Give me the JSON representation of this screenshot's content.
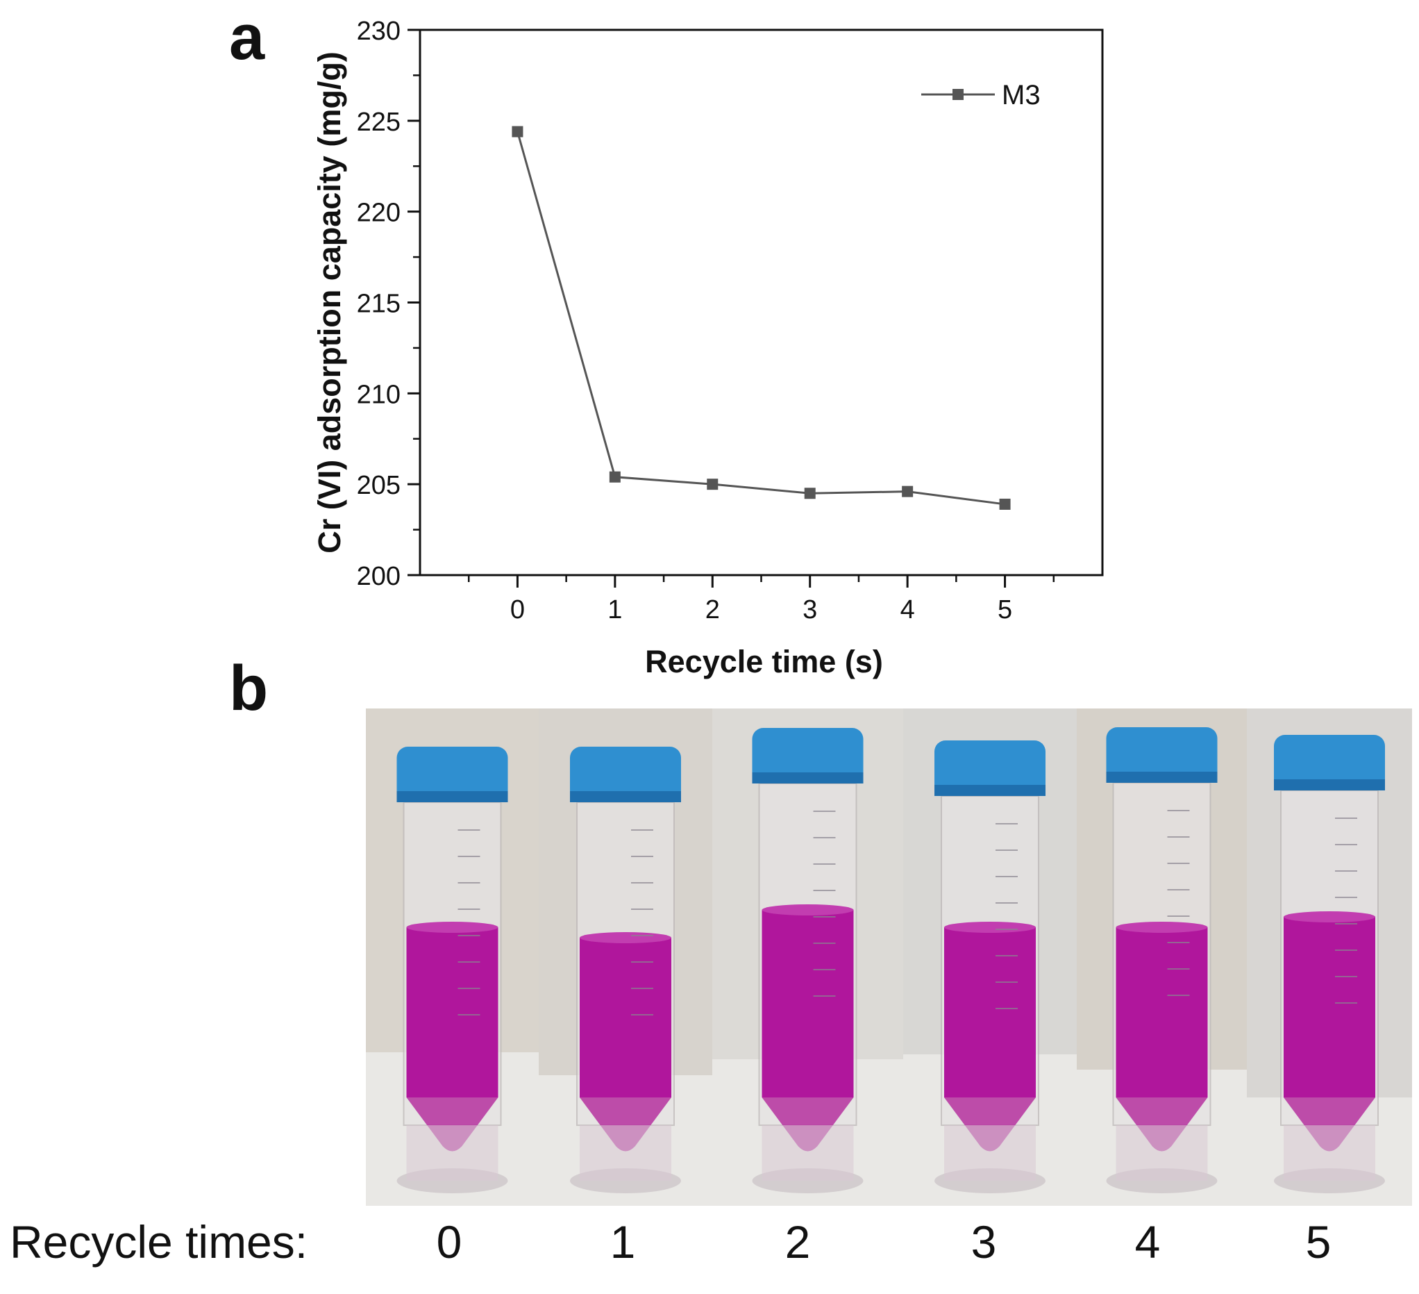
{
  "panel_labels": {
    "a": "a",
    "b": "b"
  },
  "chart_data": {
    "type": "line",
    "xlabel": "Recycle time (s)",
    "ylabel": "Cr (VI) adsorption capacity  (mg/g)",
    "x": [
      0,
      1,
      2,
      3,
      4,
      5
    ],
    "xlim": [
      -1,
      6
    ],
    "ylim": [
      200,
      230
    ],
    "xticks": [
      0,
      1,
      2,
      3,
      4,
      5
    ],
    "yticks": [
      200,
      205,
      210,
      215,
      220,
      225,
      230
    ],
    "series": [
      {
        "name": "M3",
        "values": [
          224.4,
          205.4,
          205.0,
          204.5,
          204.6,
          203.9
        ],
        "color": "#555555",
        "marker": "square"
      }
    ],
    "legend_position": "top-right",
    "grid": false
  },
  "photo_panel": {
    "caption": "Recycle times:",
    "labels": [
      "0",
      "1",
      "2",
      "3",
      "4",
      "5"
    ],
    "liquid_color": "#b0169c",
    "cap_color": "#2f8fd0"
  }
}
